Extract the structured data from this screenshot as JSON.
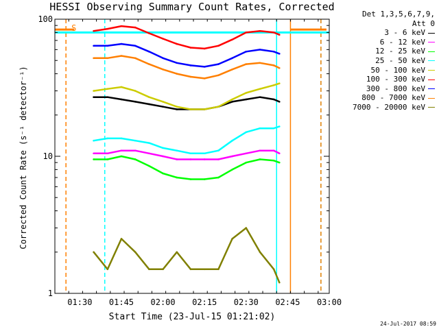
{
  "chart_data": {
    "type": "line",
    "title": "HESSI Observing Summary Count Rates, Corrected",
    "xlabel": "Start Time (23-Jul-15 01:21:02)",
    "ylabel": "Corrected Count Rate (s⁻¹ detector⁻¹)",
    "yscale": "log",
    "ylim": [
      1,
      100
    ],
    "xlim": [
      "01:21",
      "03:00"
    ],
    "x_ticks": [
      "01:30",
      "01:45",
      "02:00",
      "02:15",
      "02:30",
      "02:45",
      "03:00"
    ],
    "y_ticks": [
      "1",
      "10",
      "100"
    ],
    "legend_header": [
      "Det 1,3,5,6,7,9,",
      "Att 0"
    ],
    "legend_placement": "right",
    "series": [
      {
        "name": "3 - 6 keV",
        "color": "#000000",
        "x": [
          "01:35",
          "01:40",
          "01:45",
          "01:50",
          "01:55",
          "02:00",
          "02:05",
          "02:10",
          "02:15",
          "02:20",
          "02:25",
          "02:30",
          "02:35",
          "02:40",
          "02:42"
        ],
        "y": [
          27,
          27,
          26,
          25,
          24,
          23,
          22,
          22,
          22,
          23,
          25,
          26,
          27,
          26,
          25
        ]
      },
      {
        "name": "6 - 12 keV",
        "color": "#ff00ff",
        "x": [
          "01:35",
          "01:40",
          "01:45",
          "01:50",
          "01:55",
          "02:00",
          "02:05",
          "02:10",
          "02:15",
          "02:20",
          "02:25",
          "02:30",
          "02:35",
          "02:40",
          "02:42"
        ],
        "y": [
          10.5,
          10.5,
          11,
          11,
          10.5,
          10,
          9.5,
          9.5,
          9.5,
          9.5,
          10,
          10.5,
          11,
          11,
          10.5
        ]
      },
      {
        "name": "12 - 25 keV",
        "color": "#00ff00",
        "x": [
          "01:35",
          "01:40",
          "01:45",
          "01:50",
          "01:55",
          "02:00",
          "02:05",
          "02:10",
          "02:15",
          "02:20",
          "02:25",
          "02:30",
          "02:35",
          "02:40",
          "02:42"
        ],
        "y": [
          9.5,
          9.5,
          10,
          9.5,
          8.5,
          7.5,
          7,
          6.8,
          6.8,
          7,
          8,
          9,
          9.5,
          9.3,
          9
        ]
      },
      {
        "name": "25 - 50 keV",
        "color": "#00ffff",
        "x": [
          "01:35",
          "01:40",
          "01:45",
          "01:50",
          "01:55",
          "02:00",
          "02:05",
          "02:10",
          "02:15",
          "02:20",
          "02:25",
          "02:30",
          "02:35",
          "02:40",
          "02:42"
        ],
        "y": [
          13,
          13.5,
          13.5,
          13,
          12.5,
          11.5,
          11,
          10.5,
          10.5,
          11,
          13,
          15,
          16,
          16,
          16.5
        ]
      },
      {
        "name": "50 - 100 keV",
        "color": "#cccc00",
        "x": [
          "01:35",
          "01:40",
          "01:45",
          "01:50",
          "01:55",
          "02:00",
          "02:05",
          "02:10",
          "02:15",
          "02:20",
          "02:25",
          "02:30",
          "02:35",
          "02:40",
          "02:42"
        ],
        "y": [
          30,
          31,
          32,
          30,
          27,
          25,
          23,
          22,
          22,
          23,
          26,
          29,
          31,
          33,
          34
        ]
      },
      {
        "name": "100 - 300 keV",
        "color": "#ff0000",
        "x": [
          "01:35",
          "01:40",
          "01:45",
          "01:50",
          "01:55",
          "02:00",
          "02:05",
          "02:10",
          "02:15",
          "02:20",
          "02:25",
          "02:30",
          "02:35",
          "02:40",
          "02:42"
        ],
        "y": [
          82,
          85,
          89,
          87,
          79,
          72,
          66,
          62,
          61,
          64,
          71,
          80,
          82,
          80,
          77
        ]
      },
      {
        "name": "300 - 800 keV",
        "color": "#0000ff",
        "x": [
          "01:35",
          "01:40",
          "01:45",
          "01:50",
          "01:55",
          "02:00",
          "02:05",
          "02:10",
          "02:15",
          "02:20",
          "02:25",
          "02:30",
          "02:35",
          "02:40",
          "02:42"
        ],
        "y": [
          64,
          64,
          66,
          64,
          58,
          52,
          48,
          46,
          45,
          47,
          52,
          58,
          60,
          58,
          56
        ]
      },
      {
        "name": "800 - 7000 keV",
        "color": "#ff7f00",
        "x": [
          "01:35",
          "01:40",
          "01:45",
          "01:50",
          "01:55",
          "02:00",
          "02:05",
          "02:10",
          "02:15",
          "02:20",
          "02:25",
          "02:30",
          "02:35",
          "02:40",
          "02:42"
        ],
        "y": [
          52,
          52,
          54,
          52,
          47,
          43,
          40,
          38,
          37,
          39,
          43,
          47,
          48,
          46,
          44
        ]
      },
      {
        "name": "7000 - 20000 keV",
        "color": "#808000",
        "x": [
          "01:35",
          "01:40",
          "01:45",
          "01:50",
          "01:55",
          "02:00",
          "02:05",
          "02:10",
          "02:15",
          "02:20",
          "02:25",
          "02:30",
          "02:35",
          "02:40",
          "02:42"
        ],
        "y": [
          2,
          1.5,
          2.5,
          2,
          1.5,
          1.5,
          2,
          1.5,
          1.5,
          1.5,
          2.5,
          3,
          2,
          1.5,
          1.2
        ]
      }
    ],
    "annotations": [
      {
        "text": "S",
        "x": "01:23"
      }
    ],
    "vertical_lines": [
      {
        "x": "01:25",
        "color": "#ff7f00",
        "style": "dashed"
      },
      {
        "x": "01:39",
        "color": "#00ffff",
        "style": "dashed"
      },
      {
        "x": "02:41",
        "color": "#00ffff",
        "style": "solid"
      },
      {
        "x": "02:46",
        "color": "#ff7f00",
        "style": "solid"
      },
      {
        "x": "02:57",
        "color": "#00ffff",
        "style": "dashed"
      },
      {
        "x": "02:57",
        "color": "#ff7f00",
        "style": "dashed"
      }
    ],
    "horizontal_segments": [
      {
        "x": [
          "01:21",
          "03:00"
        ],
        "y": 80,
        "color": "#00ffff"
      },
      {
        "x": [
          "01:21",
          "01:28"
        ],
        "y": 84,
        "color": "#ff7f00"
      },
      {
        "x": [
          "02:46",
          "02:59"
        ],
        "y": 84,
        "color": "#ff7f00"
      }
    ],
    "grid": false
  },
  "footer": {
    "timestamp": "24-Jul-2017 08:59"
  }
}
